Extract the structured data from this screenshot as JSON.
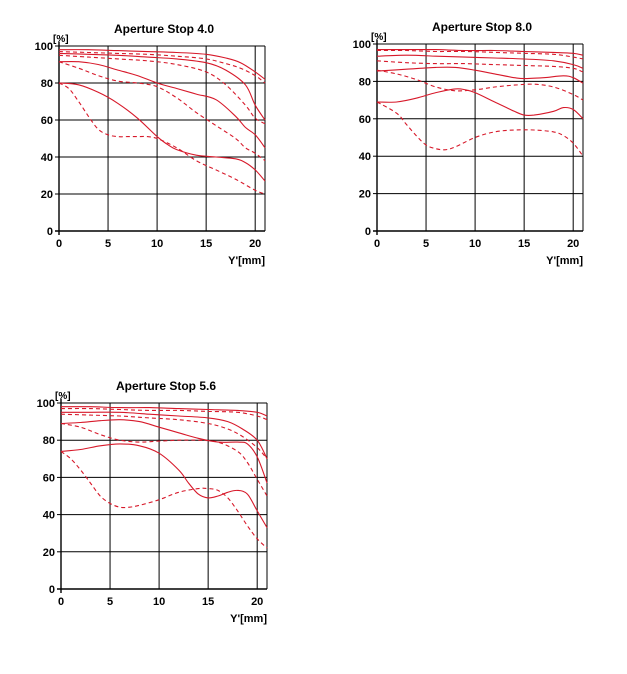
{
  "colors": {
    "curve": "#d7192a",
    "grid": "#000000",
    "axis": "#000000"
  },
  "chart_data": [
    {
      "type": "line",
      "title": "Aperture Stop 4.0",
      "xlabel": "Y'[mm]",
      "ylabel": "[%]",
      "xlim": [
        0,
        21
      ],
      "ylim": [
        0,
        100
      ],
      "xticks": [
        "0",
        "5",
        "10",
        "15",
        "20"
      ],
      "yticks": [
        "0",
        "20",
        "40",
        "60",
        "80",
        "100"
      ],
      "grid": true,
      "series": [
        {
          "style": "solid",
          "x": [
            0,
            3,
            6,
            9,
            12,
            15,
            17,
            18.5,
            20,
            21
          ],
          "y": [
            98,
            98,
            97.5,
            97,
            96.5,
            95.5,
            93.5,
            91,
            86,
            82
          ]
        },
        {
          "style": "dashed",
          "x": [
            0,
            3,
            6,
            9,
            12,
            15,
            17,
            18.5,
            20,
            21
          ],
          "y": [
            97,
            96.5,
            96,
            95.5,
            94.5,
            93,
            90.5,
            88,
            84,
            80
          ]
        },
        {
          "style": "solid",
          "x": [
            0,
            3,
            6,
            9,
            12,
            15,
            17,
            19,
            20,
            21
          ],
          "y": [
            96,
            95.5,
            95,
            94,
            93,
            91,
            87,
            79,
            68,
            60
          ]
        },
        {
          "style": "dashed",
          "x": [
            0,
            3,
            6,
            9,
            12,
            15,
            17,
            19,
            20,
            21
          ],
          "y": [
            95,
            94,
            93,
            92,
            90,
            86,
            79,
            68,
            61,
            58
          ]
        },
        {
          "style": "solid",
          "x": [
            0,
            2,
            4,
            6,
            8,
            10,
            12,
            14,
            16,
            18,
            19,
            20,
            21
          ],
          "y": [
            91.5,
            91.5,
            90,
            87,
            84,
            80,
            77,
            74,
            71,
            62,
            56,
            52,
            45
          ]
        },
        {
          "style": "dashed",
          "x": [
            0,
            2,
            4,
            6,
            8,
            10,
            12,
            14,
            16,
            18,
            19,
            20,
            21
          ],
          "y": [
            91.5,
            88,
            84,
            81,
            80,
            78,
            72,
            64,
            57,
            50,
            45,
            42,
            38
          ]
        },
        {
          "style": "solid",
          "x": [
            0,
            2,
            4,
            6,
            8,
            10,
            11,
            12,
            14,
            16,
            18,
            19,
            20,
            21
          ],
          "y": [
            80,
            79,
            75,
            69,
            61,
            51,
            47,
            44,
            41,
            40,
            39,
            37,
            33,
            27
          ]
        },
        {
          "style": "dashed",
          "x": [
            0,
            1,
            2,
            3,
            4,
            5,
            6,
            7,
            8,
            9,
            10,
            12,
            14,
            16,
            18,
            20,
            21
          ],
          "y": [
            80,
            77,
            70,
            62,
            55,
            52,
            51,
            51,
            51,
            51,
            50,
            45,
            38,
            33,
            28,
            22,
            20
          ]
        }
      ]
    },
    {
      "type": "line",
      "title": "Aperture Stop 8.0",
      "xlabel": "Y'[mm]",
      "ylabel": "[%]",
      "xlim": [
        0,
        21
      ],
      "ylim": [
        0,
        100
      ],
      "xticks": [
        "0",
        "5",
        "10",
        "15",
        "20"
      ],
      "yticks": [
        "0",
        "20",
        "40",
        "60",
        "80",
        "100"
      ],
      "grid": true,
      "series": [
        {
          "style": "solid",
          "x": [
            0,
            3,
            6,
            9,
            12,
            15,
            18,
            20,
            21
          ],
          "y": [
            97,
            97,
            97,
            96.5,
            96.5,
            96,
            95.5,
            95,
            94
          ]
        },
        {
          "style": "dashed",
          "x": [
            0,
            3,
            6,
            9,
            12,
            15,
            18,
            20,
            21
          ],
          "y": [
            96.5,
            96.5,
            96,
            96,
            95.5,
            95,
            94.5,
            93,
            92
          ]
        },
        {
          "style": "solid",
          "x": [
            0,
            3,
            6,
            9,
            12,
            15,
            18,
            20,
            21
          ],
          "y": [
            93.5,
            94,
            93.5,
            93,
            92.5,
            92,
            91,
            89,
            87
          ]
        },
        {
          "style": "dashed",
          "x": [
            0,
            3,
            6,
            9,
            12,
            15,
            18,
            20,
            21
          ],
          "y": [
            91,
            90,
            89.5,
            89.5,
            89,
            88.5,
            88,
            87,
            85
          ]
        },
        {
          "style": "solid",
          "x": [
            0,
            3,
            6,
            8,
            10,
            12,
            14,
            15,
            17,
            19,
            20,
            21
          ],
          "y": [
            85.5,
            86.5,
            87.5,
            87.5,
            86,
            84,
            82,
            81.5,
            82,
            83,
            82,
            79
          ]
        },
        {
          "style": "dashed",
          "x": [
            0,
            2,
            4,
            6,
            8,
            10,
            12,
            14,
            16,
            18,
            20,
            21
          ],
          "y": [
            86,
            84,
            81,
            77,
            75,
            75.5,
            77,
            78,
            78.5,
            77,
            73,
            70
          ]
        },
        {
          "style": "solid",
          "x": [
            0,
            2,
            4,
            6,
            8,
            9,
            10,
            12,
            14,
            15,
            16,
            18,
            19,
            20,
            21
          ],
          "y": [
            69,
            69,
            71,
            74,
            76,
            75.5,
            74,
            69,
            64,
            62,
            62,
            64,
            66,
            65,
            60
          ]
        },
        {
          "style": "dashed",
          "x": [
            0,
            2,
            3,
            4,
            5,
            6,
            7,
            8,
            10,
            12,
            14,
            16,
            18,
            19,
            20,
            21
          ],
          "y": [
            69,
            63,
            57,
            51,
            46,
            44,
            43.5,
            45,
            50,
            53,
            54,
            54,
            53,
            51,
            47,
            40
          ]
        }
      ]
    },
    {
      "type": "line",
      "title": "Aperture Stop 5.6",
      "xlabel": "Y'[mm]",
      "ylabel": "[%]",
      "xlim": [
        0,
        21
      ],
      "ylim": [
        0,
        100
      ],
      "xticks": [
        "0",
        "5",
        "10",
        "15",
        "20"
      ],
      "yticks": [
        "0",
        "20",
        "40",
        "60",
        "80",
        "100"
      ],
      "grid": true,
      "series": [
        {
          "style": "solid",
          "x": [
            0,
            3,
            6,
            9,
            12,
            15,
            18,
            20,
            21
          ],
          "y": [
            98,
            98,
            97.5,
            97.5,
            97,
            96.5,
            96,
            95,
            93
          ]
        },
        {
          "style": "dashed",
          "x": [
            0,
            3,
            6,
            9,
            12,
            15,
            18,
            20,
            21
          ],
          "y": [
            97,
            97,
            96.5,
            96,
            96,
            95.5,
            95,
            93,
            91
          ]
        },
        {
          "style": "solid",
          "x": [
            0,
            3,
            6,
            9,
            12,
            15,
            17,
            18.5,
            20,
            21
          ],
          "y": [
            95,
            95,
            95,
            94,
            93,
            92,
            90,
            86,
            80,
            70
          ]
        },
        {
          "style": "dashed",
          "x": [
            0,
            3,
            6,
            9,
            12,
            15,
            17,
            18.5,
            20,
            21
          ],
          "y": [
            94,
            93.5,
            93,
            92,
            91,
            89,
            86,
            82,
            76,
            70
          ]
        },
        {
          "style": "solid",
          "x": [
            0,
            2,
            4,
            6,
            8,
            10,
            12,
            14,
            16,
            18,
            19,
            20,
            21
          ],
          "y": [
            89,
            89.5,
            90.5,
            91,
            90,
            87,
            84,
            81,
            79,
            79,
            78,
            71,
            57
          ]
        },
        {
          "style": "dashed",
          "x": [
            0,
            2,
            4,
            6,
            8,
            10,
            12,
            14,
            16,
            18,
            19,
            20,
            21
          ],
          "y": [
            89,
            87,
            83,
            80,
            79,
            79.5,
            80,
            80,
            79,
            74,
            68,
            59,
            50
          ]
        },
        {
          "style": "solid",
          "x": [
            0,
            2,
            4,
            6,
            8,
            10,
            12,
            13,
            14,
            15,
            16,
            17,
            18,
            19,
            20,
            21
          ],
          "y": [
            74,
            75,
            77,
            78,
            77,
            73,
            64,
            57,
            51,
            49,
            50,
            52,
            53,
            51,
            42,
            33
          ]
        },
        {
          "style": "dashed",
          "x": [
            0,
            1,
            2,
            3,
            4,
            5,
            6,
            7,
            8,
            10,
            12,
            14,
            15,
            16,
            17,
            18,
            19,
            20,
            21
          ],
          "y": [
            74,
            70,
            64,
            57,
            50,
            46,
            44,
            44,
            45,
            48,
            52,
            54,
            54,
            53,
            49,
            42,
            34,
            27,
            22
          ]
        }
      ]
    }
  ]
}
